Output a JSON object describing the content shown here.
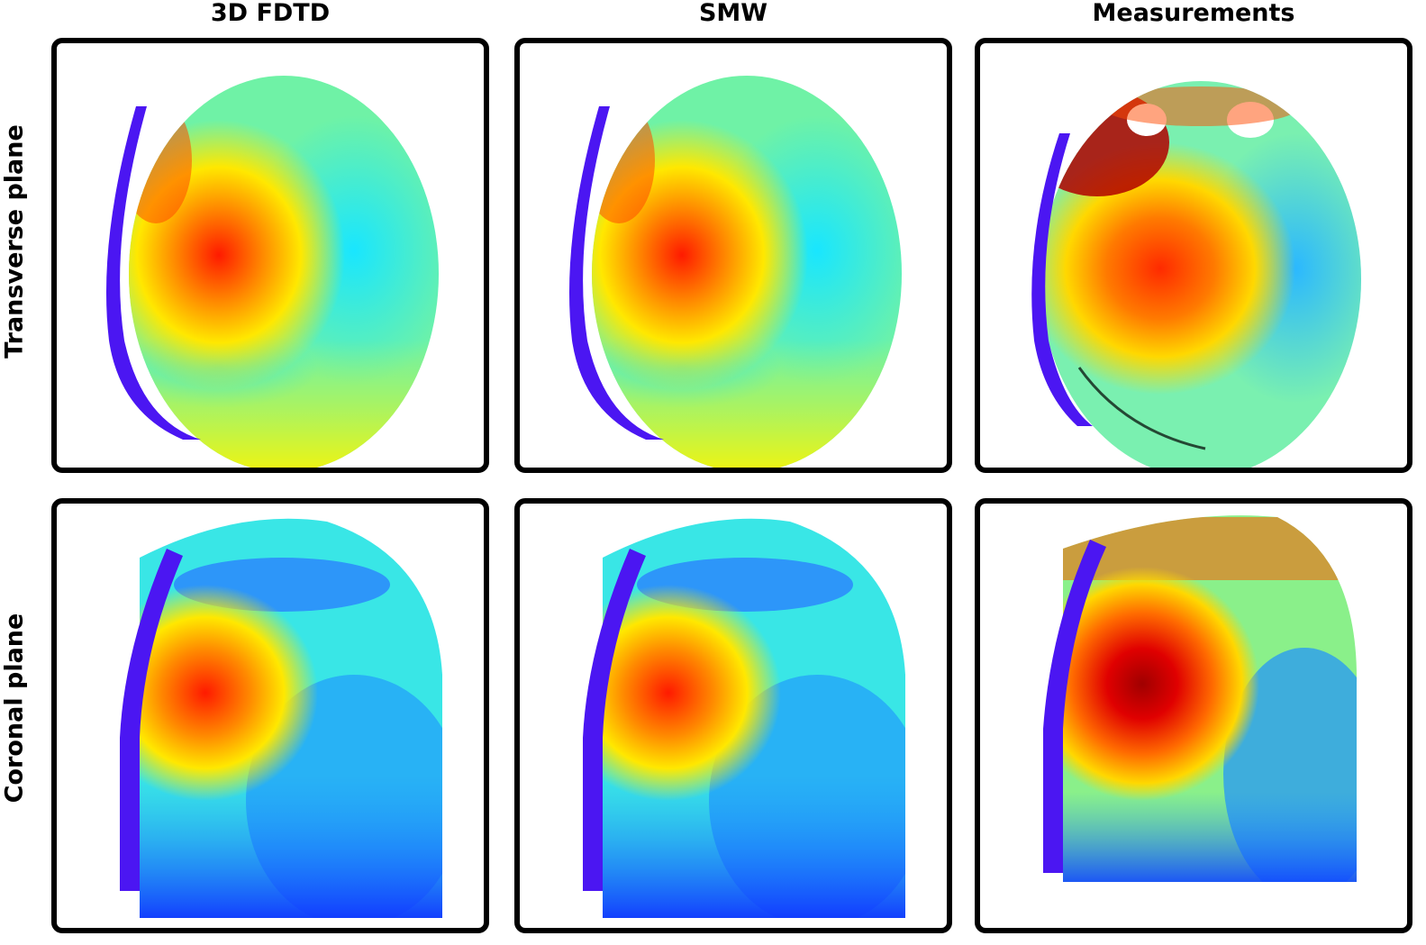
{
  "columns": {
    "fdtd": "3D FDTD",
    "smw": "SMW",
    "measurements": "Measurements"
  },
  "rows": {
    "transverse": "Transverse plane",
    "coronal": "Coronal plane"
  },
  "colors": {
    "border": "#000000",
    "background": "#ffffff",
    "colormap": "jet",
    "edge_band": "#4b16f2"
  }
}
